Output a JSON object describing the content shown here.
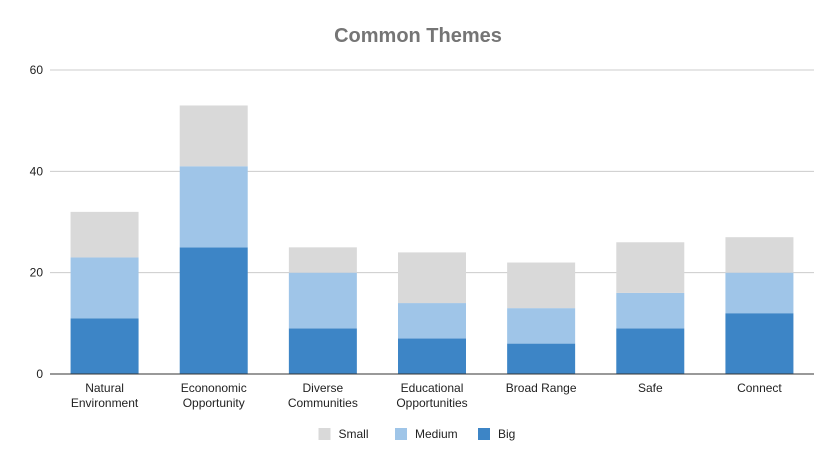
{
  "chart_data": {
    "type": "bar",
    "stacked": true,
    "title": "Common Themes",
    "xlabel": "",
    "ylabel": "",
    "ylim": [
      0,
      60
    ],
    "yticks": [
      "0",
      "20",
      "40",
      "60"
    ],
    "grid": true,
    "legend_position": "bottom",
    "categories": [
      [
        "Natural",
        "Environment"
      ],
      [
        "Econonomic",
        "Opportunity"
      ],
      [
        "Diverse",
        "Communities"
      ],
      [
        "Educational",
        "Opportunities"
      ],
      [
        "Broad Range"
      ],
      [
        "Safe"
      ],
      [
        "Connect"
      ]
    ],
    "series": [
      {
        "name": "Big",
        "color": "#3d85c6",
        "values": [
          11,
          25,
          9,
          7,
          6,
          9,
          12
        ]
      },
      {
        "name": "Medium",
        "color": "#9fc5e8",
        "values": [
          12,
          16,
          11,
          7,
          7,
          7,
          8
        ]
      },
      {
        "name": "Small",
        "color": "#d9d9d9",
        "values": [
          9,
          12,
          5,
          10,
          9,
          10,
          7
        ]
      }
    ],
    "legend_order": [
      "Small",
      "Medium",
      "Big"
    ]
  }
}
